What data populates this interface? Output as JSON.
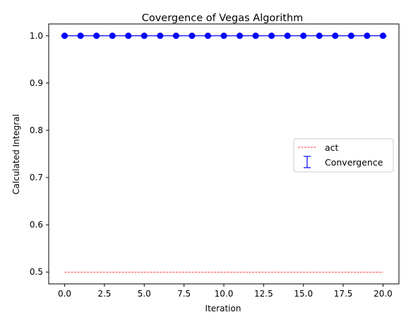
{
  "chart_data": {
    "type": "scatter",
    "title": "Covergence of Vegas Algorithm",
    "xlabel": "Iteration",
    "ylabel": "Calculated Integral",
    "xlim": [
      -1.0,
      21.0
    ],
    "ylim": [
      0.475,
      1.025
    ],
    "xticks": [
      0.0,
      2.5,
      5.0,
      7.5,
      10.0,
      12.5,
      15.0,
      17.5,
      20.0
    ],
    "xtick_labels": [
      "0.0",
      "2.5",
      "5.0",
      "7.5",
      "10.0",
      "12.5",
      "15.0",
      "17.5",
      "20.0"
    ],
    "yticks": [
      0.5,
      0.6,
      0.7,
      0.8,
      0.9,
      1.0
    ],
    "ytick_labels": [
      "0.5",
      "0.6",
      "0.7",
      "0.8",
      "0.9",
      "1.0"
    ],
    "grid": false,
    "legend_position": "right",
    "series": [
      {
        "name": "act",
        "kind": "line",
        "style": "dashed",
        "color": "#ff0000",
        "x": [
          0,
          20
        ],
        "y": [
          0.5,
          0.5
        ]
      },
      {
        "name": "Convergence",
        "kind": "errorbar",
        "color": "#0000ff",
        "x": [
          0,
          1,
          2,
          3,
          4,
          5,
          6,
          7,
          8,
          9,
          10,
          11,
          12,
          13,
          14,
          15,
          16,
          17,
          18,
          19,
          20
        ],
        "y": [
          1.0,
          1.0,
          1.0,
          1.0,
          1.0,
          1.0,
          1.0,
          1.0,
          1.0,
          1.0,
          1.0,
          1.0,
          1.0,
          1.0,
          1.0,
          1.0,
          1.0,
          1.0,
          1.0,
          1.0,
          1.0
        ]
      }
    ]
  }
}
